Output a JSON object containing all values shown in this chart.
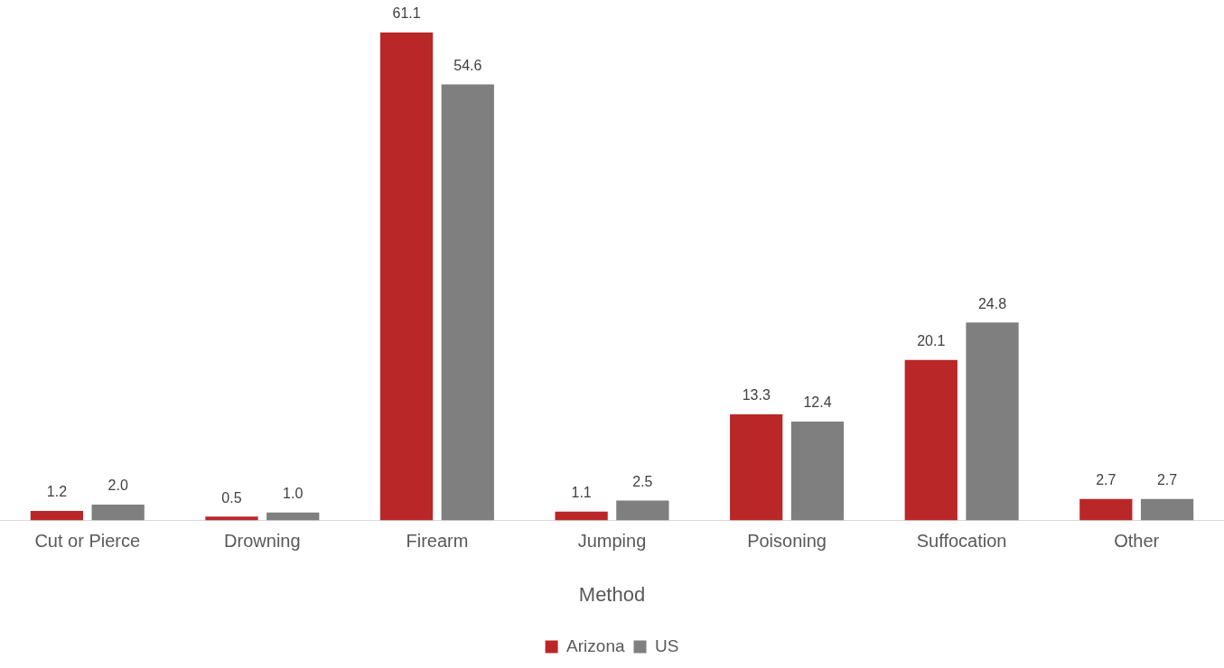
{
  "chart_data": {
    "type": "bar",
    "xlabel": "Method",
    "categories": [
      "Cut or Pierce",
      "Drowning",
      "Firearm",
      "Jumping",
      "Poisoning",
      "Suffocation",
      "Other"
    ],
    "series": [
      {
        "name": "Arizona",
        "color": "#b92728",
        "values": [
          1.2,
          0.5,
          61.1,
          1.1,
          13.3,
          20.1,
          2.7
        ],
        "value_labels": [
          "1.2",
          "0.5",
          "61.1",
          "1.1",
          "13.3",
          "20.1",
          "2.7"
        ]
      },
      {
        "name": "US",
        "color": "#7f7f7f",
        "values": [
          2,
          1,
          54.6,
          2.5,
          12.4,
          24.8,
          2.7
        ],
        "value_labels": [
          "2.0",
          "1.0",
          "54.6",
          "2.5",
          "12.4",
          "24.8",
          "2.7"
        ]
      }
    ],
    "grid": false,
    "legend": "bottom"
  }
}
